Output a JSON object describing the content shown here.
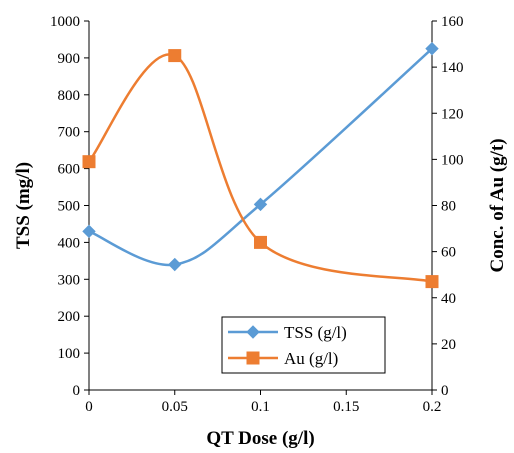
{
  "chart_data": {
    "type": "line",
    "x": [
      0,
      0.05,
      0.1,
      0.2
    ],
    "xlabel": "QT Dose (g/l)",
    "xlim": [
      0,
      0.2
    ],
    "xticks": [
      "0",
      "0.05",
      "0.1",
      "0.15",
      "0.2"
    ],
    "ylabel": "TSS (mg/l)",
    "ylim": [
      0,
      1000
    ],
    "yticks": [
      "0",
      "100",
      "200",
      "300",
      "400",
      "500",
      "600",
      "700",
      "800",
      "900",
      "1000"
    ],
    "y2label": "Conc. of Au (g/t)",
    "y2lim": [
      0,
      160
    ],
    "y2ticks": [
      "0",
      "20",
      "40",
      "60",
      "80",
      "100",
      "120",
      "140",
      "160"
    ],
    "series": [
      {
        "name": "TSS (g/l)",
        "axis": "left",
        "values": [
          430,
          340,
          503,
          925
        ],
        "color": "#5B9BD5",
        "marker": "diamond"
      },
      {
        "name": "Au (g/l)",
        "axis": "right",
        "values": [
          99,
          145,
          64,
          47
        ],
        "color": "#ED7D31",
        "marker": "square"
      }
    ],
    "grid": false,
    "legend_position": "bottom-right"
  }
}
